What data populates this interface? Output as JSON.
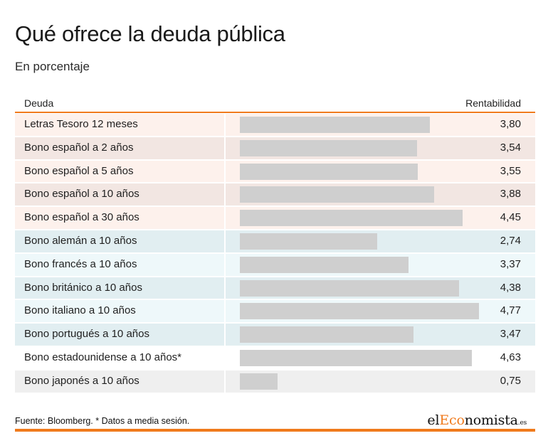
{
  "header": {
    "title": "Qué ofrece la deuda pública",
    "subtitle": "En porcentaje"
  },
  "table": {
    "col_name": "Deuda",
    "col_value": "Rentabilidad"
  },
  "colors": {
    "accent": "#f07a1c",
    "bar": "#cfcfcf",
    "spain_row_light": "#fdf1ec",
    "spain_row_dark": "#f2e6e2",
    "foreign_row_light": "#eef8fa",
    "foreign_row_dark": "#e1eef1",
    "other_row_light": "#ffffff",
    "other_row_dark": "#efefef"
  },
  "chart_data": {
    "type": "bar",
    "orientation": "horizontal",
    "categories": [
      "Letras Tesoro 12 meses",
      "Bono español a 2 años",
      "Bono español a 5 años",
      "Bono español a 10 años",
      "Bono español a 30 años",
      "Bono alemán a 10 años",
      "Bono francés a 10 años",
      "Bono británico a 10 años",
      "Bono italiano a 10 años",
      "Bono portugués a 10 años",
      "Bono estadounidense a 10 años*",
      "Bono japonés a 10 años"
    ],
    "values": [
      3.8,
      3.54,
      3.55,
      3.88,
      4.45,
      2.74,
      3.37,
      4.38,
      4.77,
      3.47,
      4.63,
      0.75
    ],
    "value_labels": [
      "3,80",
      "3,54",
      "3,55",
      "3,88",
      "4,45",
      "2,74",
      "3,37",
      "4,38",
      "4,77",
      "3,47",
      "4,63",
      "0,75"
    ],
    "groups": [
      "spain",
      "spain",
      "spain",
      "spain",
      "spain",
      "foreign",
      "foreign",
      "foreign",
      "foreign",
      "foreign",
      "other",
      "other"
    ],
    "xlim": [
      0,
      5.3
    ],
    "grid": false
  },
  "footer": {
    "source": "Fuente: Bloomberg. * Datos a media sesión.",
    "logo_pre": "el",
    "logo_accent": "Eco",
    "logo_post": "nomista",
    "logo_tld": ".es"
  }
}
